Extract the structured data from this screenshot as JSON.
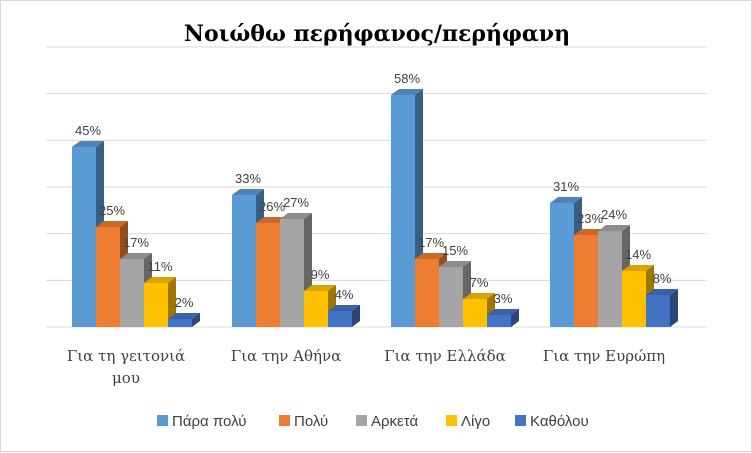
{
  "chart_data": {
    "type": "bar",
    "title": "Νοιώθω περήφανος/περήφανη",
    "categories": [
      "Για τη γειτονιά μου",
      "Για την Αθήνα",
      "Για την Ελλάδα",
      "Για την Ευρώπη"
    ],
    "category_lines": [
      [
        "Για τη γειτονιά",
        "μου"
      ],
      [
        "Για την Αθήνα"
      ],
      [
        "Για την Ελλάδα"
      ],
      [
        "Για την Ευρώπη"
      ]
    ],
    "series": [
      {
        "name": "Πάρα πολύ",
        "values": [
          45,
          33,
          58,
          31
        ],
        "labels": [
          "45%",
          "33%",
          "58%",
          "31%"
        ],
        "color": "#5B9BD5"
      },
      {
        "name": "Πολύ",
        "values": [
          25,
          26,
          17,
          23
        ],
        "labels": [
          "25%",
          "26%",
          "17%",
          "23%"
        ],
        "color": "#ED7D31"
      },
      {
        "name": "Αρκετά",
        "values": [
          17,
          27,
          15,
          24
        ],
        "labels": [
          "17%",
          "27%",
          "15%",
          "24%"
        ],
        "color": "#A5A5A5"
      },
      {
        "name": "Λίγο",
        "values": [
          11,
          9,
          7,
          14
        ],
        "labels": [
          "11%",
          "9%",
          "7%",
          "14%"
        ],
        "color": "#FFC000"
      },
      {
        "name": "Καθόλου",
        "values": [
          2,
          4,
          3,
          8
        ],
        "labels": [
          "2%",
          "4%",
          "3%",
          "8%"
        ],
        "color": "#4472C4"
      }
    ],
    "ylim": [
      0,
      70
    ],
    "grid": true,
    "legend": "bottom",
    "xlabel": "",
    "ylabel": ""
  }
}
